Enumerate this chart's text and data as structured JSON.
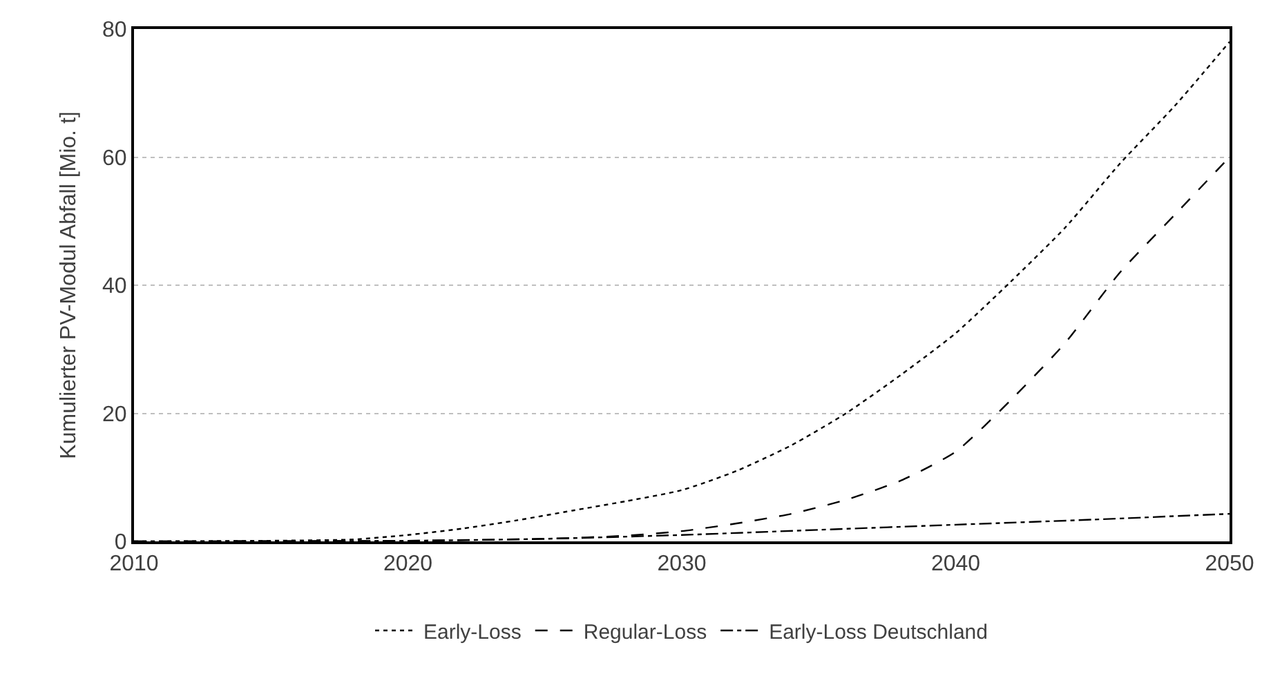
{
  "chart_data": {
    "type": "line",
    "ylabel": "Kumulierter PV-Modul Abfall [Mio. t]",
    "xlim": [
      2010,
      2050
    ],
    "xticks": [
      2010,
      2020,
      2030,
      2040,
      2050
    ],
    "ylim": [
      0,
      80
    ],
    "yticks": [
      0,
      20,
      40,
      60,
      80
    ],
    "grid": "y",
    "legend": "bottom",
    "marker": "none",
    "series": [
      {
        "name": "Early-Loss",
        "color": "#000000",
        "line_style": "dotted",
        "x": [
          2010,
          2015,
          2018,
          2020,
          2022,
          2024,
          2026,
          2028,
          2030,
          2032,
          2034,
          2036,
          2038,
          2040,
          2042,
          2044,
          2046,
          2048,
          2050
        ],
        "values": [
          0,
          0.1,
          0.3,
          1.0,
          2.0,
          3.3,
          4.8,
          6.3,
          8.0,
          11,
          15,
          20,
          26,
          32.5,
          40.5,
          49,
          59,
          68,
          78
        ]
      },
      {
        "name": "Regular-Loss",
        "color": "#000000",
        "line_style": "dashed",
        "x": [
          2010,
          2020,
          2025,
          2028,
          2030,
          2032,
          2034,
          2036,
          2038,
          2040,
          2042,
          2044,
          2046,
          2048,
          2050
        ],
        "values": [
          0,
          0.1,
          0.4,
          0.9,
          1.6,
          2.8,
          4.3,
          6.5,
          9.5,
          14,
          22,
          31,
          42,
          51,
          60
        ]
      },
      {
        "name": "Early-Loss Deutschland",
        "color": "#000000",
        "line_style": "dashdot",
        "x": [
          2010,
          2020,
          2025,
          2030,
          2035,
          2040,
          2045,
          2050
        ],
        "values": [
          0,
          0.1,
          0.4,
          1.0,
          1.8,
          2.6,
          3.4,
          4.3
        ]
      }
    ]
  }
}
